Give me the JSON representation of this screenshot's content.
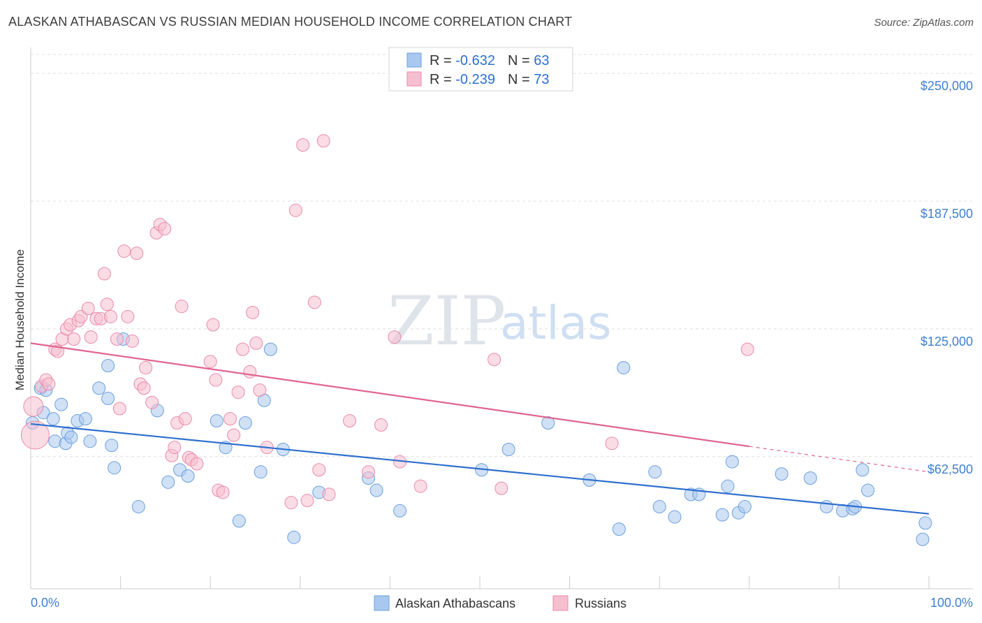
{
  "title": "ALASKAN ATHABASCAN VS RUSSIAN MEDIAN HOUSEHOLD INCOME CORRELATION CHART",
  "source": "Source: ZipAtlas.com",
  "watermark": {
    "zip": "ZIP",
    "atlas": "atlas"
  },
  "colors": {
    "blue_fill": "#a9c8ef",
    "blue_stroke": "#6b9fdc",
    "blue_line": "#2f6fcf",
    "pink_fill": "#f6bfd0",
    "pink_stroke": "#e98aaa",
    "pink_line": "#e0648e",
    "tick_text": "#3f7fcf"
  },
  "stats": [
    {
      "r_label": "R = ",
      "r": "-0.632",
      "n_label": "N = ",
      "n": "63"
    },
    {
      "r_label": "R = ",
      "r": "-0.239",
      "n_label": "N = ",
      "n": "73"
    }
  ],
  "chart_data": {
    "type": "scatter",
    "title": "ALASKAN ATHABASCAN VS RUSSIAN MEDIAN HOUSEHOLD INCOME CORRELATION CHART",
    "xlabel": "",
    "ylabel": "Median Household Income",
    "xlim": [
      0,
      100
    ],
    "ylim": [
      5000,
      262000
    ],
    "x_tick_labels": [
      "0.0%",
      "100.0%"
    ],
    "y_ticks": [
      62500,
      125000,
      187500,
      250000
    ],
    "y_tick_labels": [
      "$62,500",
      "$125,000",
      "$187,500",
      "$250,000"
    ],
    "legend": [
      "Alaskan Athabascans",
      "Russians"
    ],
    "series": [
      {
        "name": "Alaskan Athabascans",
        "trend": {
          "x": [
            0,
            100
          ],
          "y": [
            78500,
            34500
          ]
        },
        "points": [
          [
            0.2,
            79000
          ],
          [
            1.1,
            96000
          ],
          [
            1.4,
            84000
          ],
          [
            1.7,
            95000
          ],
          [
            2.5,
            81000
          ],
          [
            2.7,
            70000
          ],
          [
            3.4,
            88000
          ],
          [
            3.9,
            69000
          ],
          [
            4.1,
            74000
          ],
          [
            4.5,
            72000
          ],
          [
            5.2,
            80000
          ],
          [
            6.1,
            81000
          ],
          [
            6.6,
            70000
          ],
          [
            7.6,
            96000
          ],
          [
            8.6,
            91000
          ],
          [
            8.6,
            107000
          ],
          [
            9.0,
            68000
          ],
          [
            9.3,
            57000
          ],
          [
            10.3,
            120000
          ],
          [
            12.0,
            38000
          ],
          [
            14.1,
            85000
          ],
          [
            15.3,
            50000
          ],
          [
            16.6,
            56000
          ],
          [
            17.5,
            53000
          ],
          [
            20.7,
            80000
          ],
          [
            21.7,
            67000
          ],
          [
            23.2,
            31000
          ],
          [
            23.9,
            79000
          ],
          [
            25.6,
            55000
          ],
          [
            26.0,
            90000
          ],
          [
            26.7,
            115000
          ],
          [
            28.1,
            66000
          ],
          [
            29.3,
            23000
          ],
          [
            32.1,
            45000
          ],
          [
            37.6,
            52000
          ],
          [
            38.5,
            46000
          ],
          [
            41.1,
            36000
          ],
          [
            50.2,
            56000
          ],
          [
            53.2,
            66000
          ],
          [
            57.6,
            79000
          ],
          [
            62.2,
            51000
          ],
          [
            65.5,
            27000
          ],
          [
            66.0,
            106000
          ],
          [
            69.5,
            55000
          ],
          [
            70.0,
            38000
          ],
          [
            71.7,
            33000
          ],
          [
            73.5,
            44000
          ],
          [
            74.4,
            44000
          ],
          [
            77.0,
            34000
          ],
          [
            77.6,
            48000
          ],
          [
            78.1,
            60000
          ],
          [
            78.8,
            35000
          ],
          [
            79.5,
            38000
          ],
          [
            83.6,
            54000
          ],
          [
            86.8,
            52000
          ],
          [
            88.6,
            38000
          ],
          [
            90.4,
            36000
          ],
          [
            91.5,
            37000
          ],
          [
            91.8,
            38000
          ],
          [
            92.6,
            56000
          ],
          [
            93.2,
            46000
          ],
          [
            99.3,
            22000
          ],
          [
            99.6,
            30000
          ]
        ]
      },
      {
        "name": "Russians",
        "trend": {
          "x": [
            0,
            80
          ],
          "y": [
            118000,
            67500
          ]
        },
        "trend_dashed": {
          "x": [
            80,
            100
          ],
          "y": [
            67500,
            55000
          ]
        },
        "points": [
          [
            0.3,
            87000
          ],
          [
            0.5,
            73000
          ],
          [
            1.2,
            97000
          ],
          [
            1.7,
            100000
          ],
          [
            2.0,
            98000
          ],
          [
            2.7,
            115000
          ],
          [
            3.0,
            114000
          ],
          [
            3.5,
            120000
          ],
          [
            4.0,
            125000
          ],
          [
            4.4,
            127000
          ],
          [
            4.8,
            120000
          ],
          [
            5.3,
            129000
          ],
          [
            5.6,
            131000
          ],
          [
            6.4,
            135000
          ],
          [
            6.7,
            121000
          ],
          [
            7.3,
            130000
          ],
          [
            7.8,
            130000
          ],
          [
            8.2,
            152000
          ],
          [
            8.5,
            137000
          ],
          [
            8.9,
            131000
          ],
          [
            9.6,
            120000
          ],
          [
            9.9,
            86000
          ],
          [
            10.4,
            163000
          ],
          [
            10.8,
            131000
          ],
          [
            11.3,
            119000
          ],
          [
            11.8,
            162000
          ],
          [
            12.2,
            98000
          ],
          [
            12.6,
            96000
          ],
          [
            12.8,
            106000
          ],
          [
            13.5,
            89000
          ],
          [
            14.0,
            172000
          ],
          [
            14.4,
            176000
          ],
          [
            14.9,
            174000
          ],
          [
            15.7,
            63000
          ],
          [
            16.0,
            67000
          ],
          [
            16.3,
            79000
          ],
          [
            16.8,
            136000
          ],
          [
            17.2,
            81000
          ],
          [
            17.6,
            62000
          ],
          [
            17.9,
            61000
          ],
          [
            18.5,
            59000
          ],
          [
            20.0,
            109000
          ],
          [
            20.3,
            127000
          ],
          [
            20.6,
            100000
          ],
          [
            20.9,
            46000
          ],
          [
            21.4,
            45000
          ],
          [
            22.2,
            81000
          ],
          [
            22.6,
            73000
          ],
          [
            23.1,
            94000
          ],
          [
            23.6,
            115000
          ],
          [
            24.4,
            104000
          ],
          [
            24.7,
            133000
          ],
          [
            25.1,
            118000
          ],
          [
            25.5,
            95000
          ],
          [
            26.3,
            67000
          ],
          [
            29.0,
            40000
          ],
          [
            29.5,
            183000
          ],
          [
            30.3,
            215000
          ],
          [
            30.8,
            41000
          ],
          [
            31.6,
            138000
          ],
          [
            32.1,
            56000
          ],
          [
            32.6,
            217000
          ],
          [
            33.2,
            44000
          ],
          [
            35.5,
            80000
          ],
          [
            37.6,
            55000
          ],
          [
            39.0,
            78000
          ],
          [
            40.5,
            121000
          ],
          [
            41.1,
            60000
          ],
          [
            43.4,
            48000
          ],
          [
            51.6,
            110000
          ],
          [
            52.4,
            47000
          ],
          [
            64.7,
            69000
          ],
          [
            79.8,
            115000
          ]
        ]
      }
    ]
  }
}
